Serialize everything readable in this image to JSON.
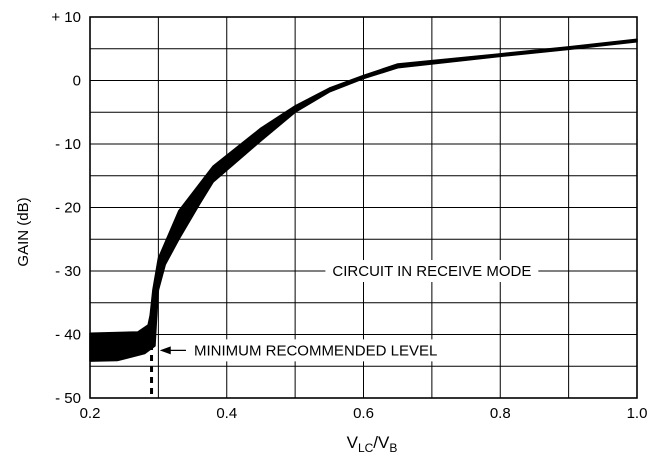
{
  "chart_data": {
    "type": "line",
    "xlabel": {
      "main": "V",
      "sub1": "LC",
      "sep": "/V",
      "sub2": "B"
    },
    "ylabel": "GAIN (dB)",
    "xlim": [
      0.2,
      1.0
    ],
    "ylim": [
      -50,
      10
    ],
    "x_ticks": [
      {
        "value": 0.2,
        "label": "0.2"
      },
      {
        "value": 0.4,
        "label": "0.4"
      },
      {
        "value": 0.6,
        "label": "0.6"
      },
      {
        "value": 0.8,
        "label": "0.8"
      },
      {
        "value": 1.0,
        "label": "1.0"
      }
    ],
    "y_ticks": [
      {
        "value": 10,
        "label": "+ 10"
      },
      {
        "value": 0,
        "label": "0"
      },
      {
        "value": -10,
        "label": "- 10"
      },
      {
        "value": -20,
        "label": "- 20"
      },
      {
        "value": -30,
        "label": "- 30"
      },
      {
        "value": -40,
        "label": "- 40"
      },
      {
        "value": -50,
        "label": "- 50"
      }
    ],
    "grid": true,
    "grid_x_step": 0.1,
    "grid_y_step": 5,
    "series": [
      {
        "upper": [
          [
            0.2,
            -39.8
          ],
          [
            0.27,
            -39.6
          ],
          [
            0.285,
            -38.5
          ],
          [
            0.288,
            -37
          ],
          [
            0.292,
            -33
          ],
          [
            0.3,
            -28
          ],
          [
            0.33,
            -20.5
          ],
          [
            0.38,
            -13.5
          ],
          [
            0.45,
            -7.5
          ],
          [
            0.5,
            -4
          ],
          [
            0.55,
            -1.2
          ],
          [
            0.6,
            0.8
          ],
          [
            0.65,
            2.6
          ],
          [
            0.8,
            4.2
          ],
          [
            0.9,
            5.3
          ],
          [
            1.0,
            6.5
          ]
        ],
        "lower": [
          [
            0.2,
            -44.2
          ],
          [
            0.24,
            -44.1
          ],
          [
            0.28,
            -43
          ],
          [
            0.295,
            -41.8
          ],
          [
            0.297,
            -38
          ],
          [
            0.3,
            -33
          ],
          [
            0.31,
            -29
          ],
          [
            0.33,
            -25
          ],
          [
            0.36,
            -19.5
          ],
          [
            0.38,
            -16
          ],
          [
            0.45,
            -9.5
          ],
          [
            0.5,
            -5
          ],
          [
            0.55,
            -1.8
          ],
          [
            0.6,
            0.3
          ],
          [
            0.65,
            2.0
          ],
          [
            0.8,
            3.8
          ],
          [
            0.9,
            4.9
          ],
          [
            1.0,
            6.1
          ]
        ]
      }
    ],
    "annotations": [
      {
        "text": "CIRCUIT IN RECEIVE MODE",
        "x": 0.7,
        "y": -30
      },
      {
        "text": "MINIMUM RECOMMENDED LEVEL",
        "x": 0.53,
        "y": -42.5,
        "arrow_to": [
          0.302,
          -42.5
        ]
      }
    ],
    "marker_line": {
      "x": 0.29,
      "from": -41.5,
      "to": -50,
      "style": "dashed"
    }
  }
}
